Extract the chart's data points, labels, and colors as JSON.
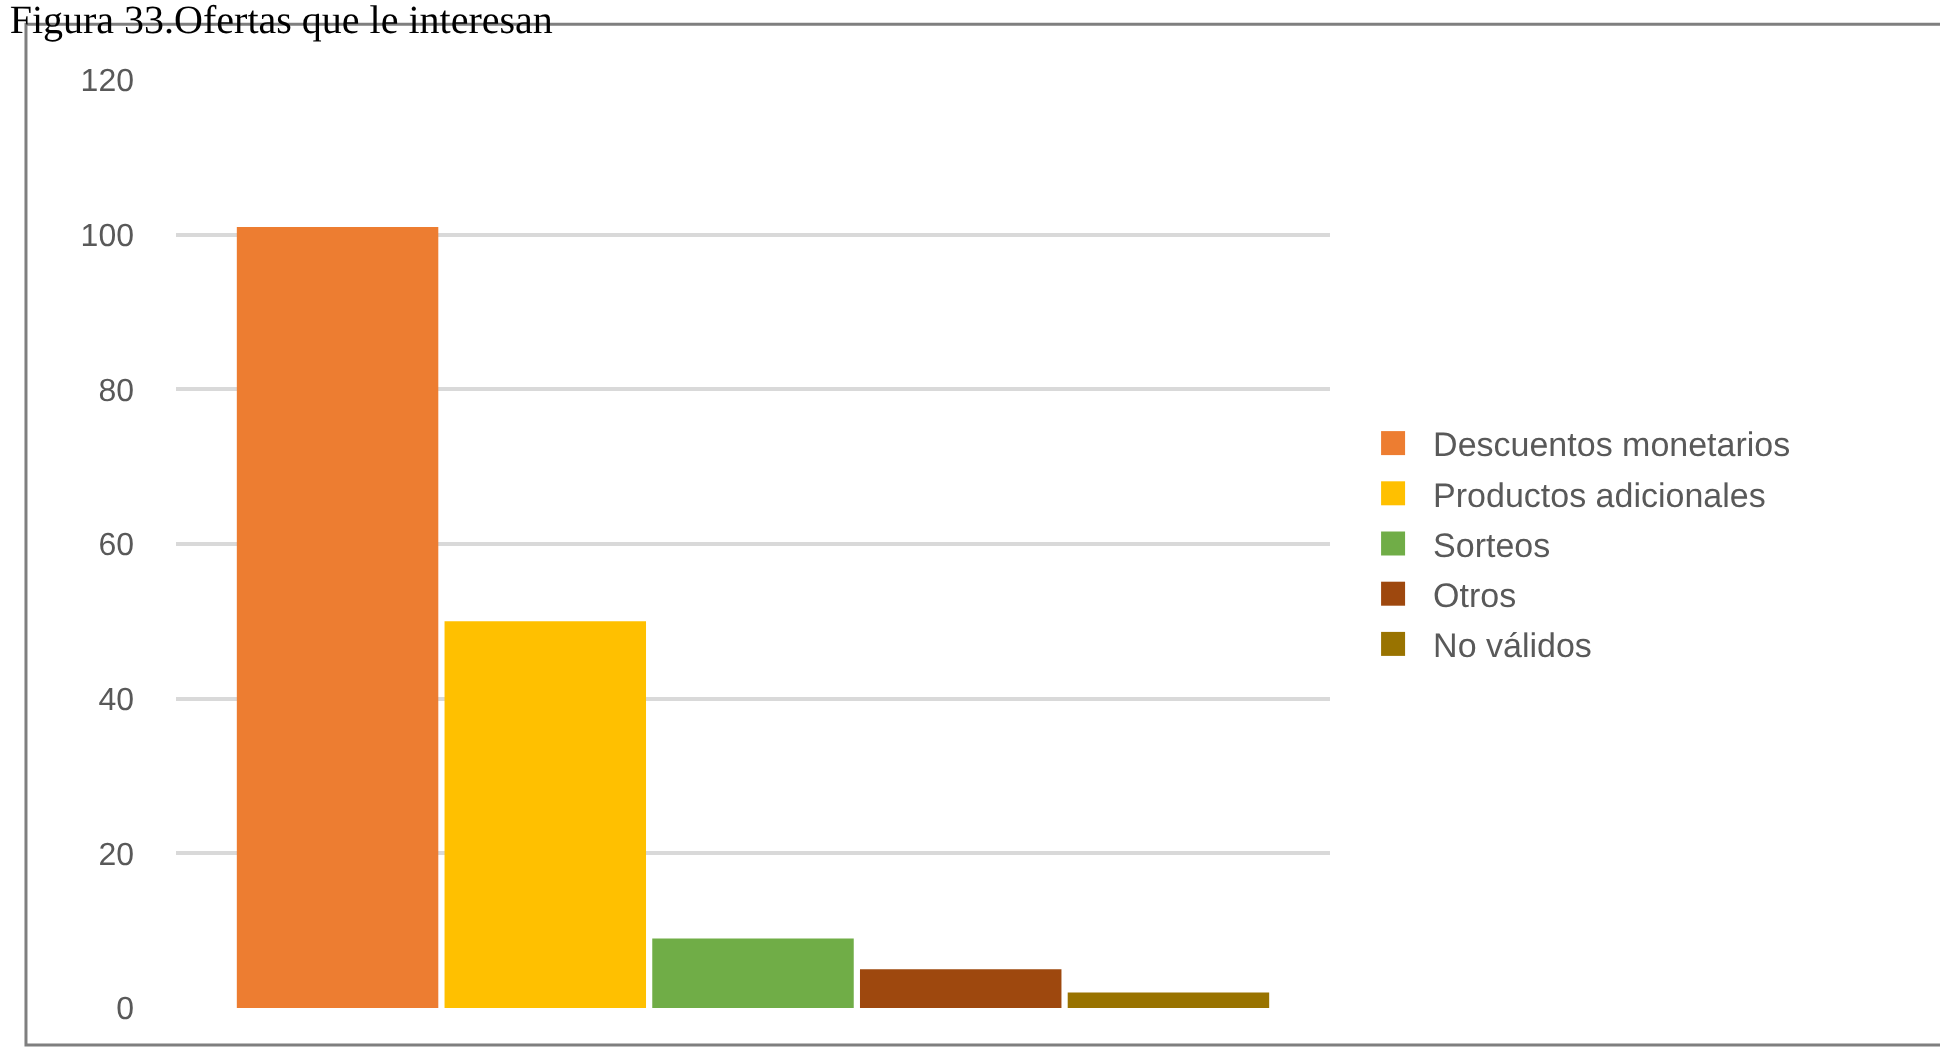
{
  "chart_data": {
    "type": "bar",
    "title": "Figura 33.Ofertas que le interesan",
    "categories": [
      null
    ],
    "series": [
      {
        "name": "Descuentos monetarios",
        "color": "#ed7d31",
        "values": [
          101
        ]
      },
      {
        "name": "Productos adicionales",
        "color": "#ffc000",
        "values": [
          50
        ]
      },
      {
        "name": "Sorteos",
        "color": "#70ad47",
        "values": [
          9
        ]
      },
      {
        "name": "Otros",
        "color": "#9e480e",
        "values": [
          5
        ]
      },
      {
        "name": "No válidos",
        "color": "#997300",
        "values": [
          2
        ]
      }
    ],
    "ylim": [
      0,
      120
    ],
    "yticks": [
      0,
      20,
      40,
      60,
      80,
      100,
      120
    ],
    "grid": "y",
    "legend": "right",
    "tick_labels": "y"
  }
}
